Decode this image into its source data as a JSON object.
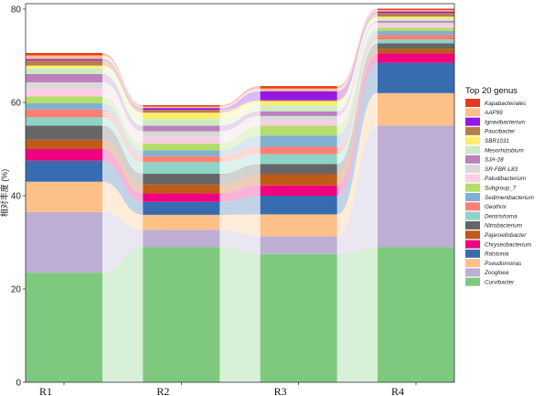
{
  "chart_data": {
    "type": "bar",
    "subtype": "stacked-bar-with-flow-ribbons",
    "categories": [
      "R1",
      "R2",
      "R3",
      "R4"
    ],
    "ylabel": "相对丰度 (%)",
    "ylim": [
      0,
      80
    ],
    "yticks": [
      "0",
      "20",
      "40",
      "60",
      "80"
    ],
    "grid": false,
    "legend_title": "Top 20 genus",
    "legend_position": "right",
    "series": [
      {
        "name": "Curvibacter",
        "color": "#7fc97f",
        "values": [
          23.5,
          29.0,
          27.5,
          29.0
        ]
      },
      {
        "name": "Zoogloea",
        "color": "#beaed4",
        "values": [
          13.0,
          3.7,
          3.8,
          26.0
        ]
      },
      {
        "name": "Pseudomonas",
        "color": "#fdc086",
        "values": [
          6.5,
          3.2,
          4.7,
          7.0
        ]
      },
      {
        "name": "Ralstonia",
        "color": "#386cb0",
        "values": [
          4.5,
          2.8,
          4.0,
          6.5
        ]
      },
      {
        "name": "Chryseobacterium",
        "color": "#f0027f",
        "values": [
          2.5,
          1.8,
          2.2,
          2.0
        ]
      },
      {
        "name": "Pajaroellobacter",
        "color": "#bf5b17",
        "values": [
          2.0,
          1.9,
          2.4,
          1.0
        ]
      },
      {
        "name": "Nitrobacterium",
        "color": "#666666",
        "values": [
          3.0,
          2.3,
          2.2,
          1.2
        ]
      },
      {
        "name": "Dentrishoma",
        "color": "#8dd3c7",
        "values": [
          1.8,
          2.5,
          2.1,
          0.8
        ]
      },
      {
        "name": "Geothrix",
        "color": "#fb8072",
        "values": [
          1.7,
          1.3,
          1.6,
          1.0
        ]
      },
      {
        "name": "Sedimenibacterium",
        "color": "#80b1d3",
        "values": [
          1.3,
          1.2,
          2.4,
          0.8
        ]
      },
      {
        "name": "Subgroup_7",
        "color": "#b3de69",
        "values": [
          1.5,
          1.5,
          2.1,
          0.7
        ]
      },
      {
        "name": "Paludibacterium",
        "color": "#fccde5",
        "values": [
          1.7,
          1.4,
          1.0,
          0.6
        ]
      },
      {
        "name": "SR-FBR-L83",
        "color": "#d9d9d9",
        "values": [
          1.3,
          1.2,
          1.1,
          0.5
        ]
      },
      {
        "name": "SJA-28",
        "color": "#bc80bd",
        "values": [
          1.8,
          1.2,
          1.0,
          0.4
        ]
      },
      {
        "name": "Mesorhizobium",
        "color": "#ccebc5",
        "values": [
          1.2,
          1.4,
          1.2,
          0.5
        ]
      },
      {
        "name": "SBR1031",
        "color": "#ffed6f",
        "values": [
          0.6,
          1.4,
          1.0,
          0.4
        ]
      },
      {
        "name": "Paucibacter",
        "color": "#b87d4b",
        "values": [
          1.1,
          0.6,
          0.2,
          0.8
        ]
      },
      {
        "name": "Ignavibacterium",
        "color": "#9417e6",
        "values": [
          0.3,
          0.4,
          1.9,
          0.3
        ]
      },
      {
        "name": "AAP99",
        "color": "#fbbf8b",
        "values": [
          0.8,
          0.3,
          0.6,
          0.3
        ]
      },
      {
        "name": "Kapabacteriales",
        "color": "#e63a1c",
        "values": [
          0.5,
          0.3,
          0.5,
          0.3
        ]
      }
    ]
  }
}
